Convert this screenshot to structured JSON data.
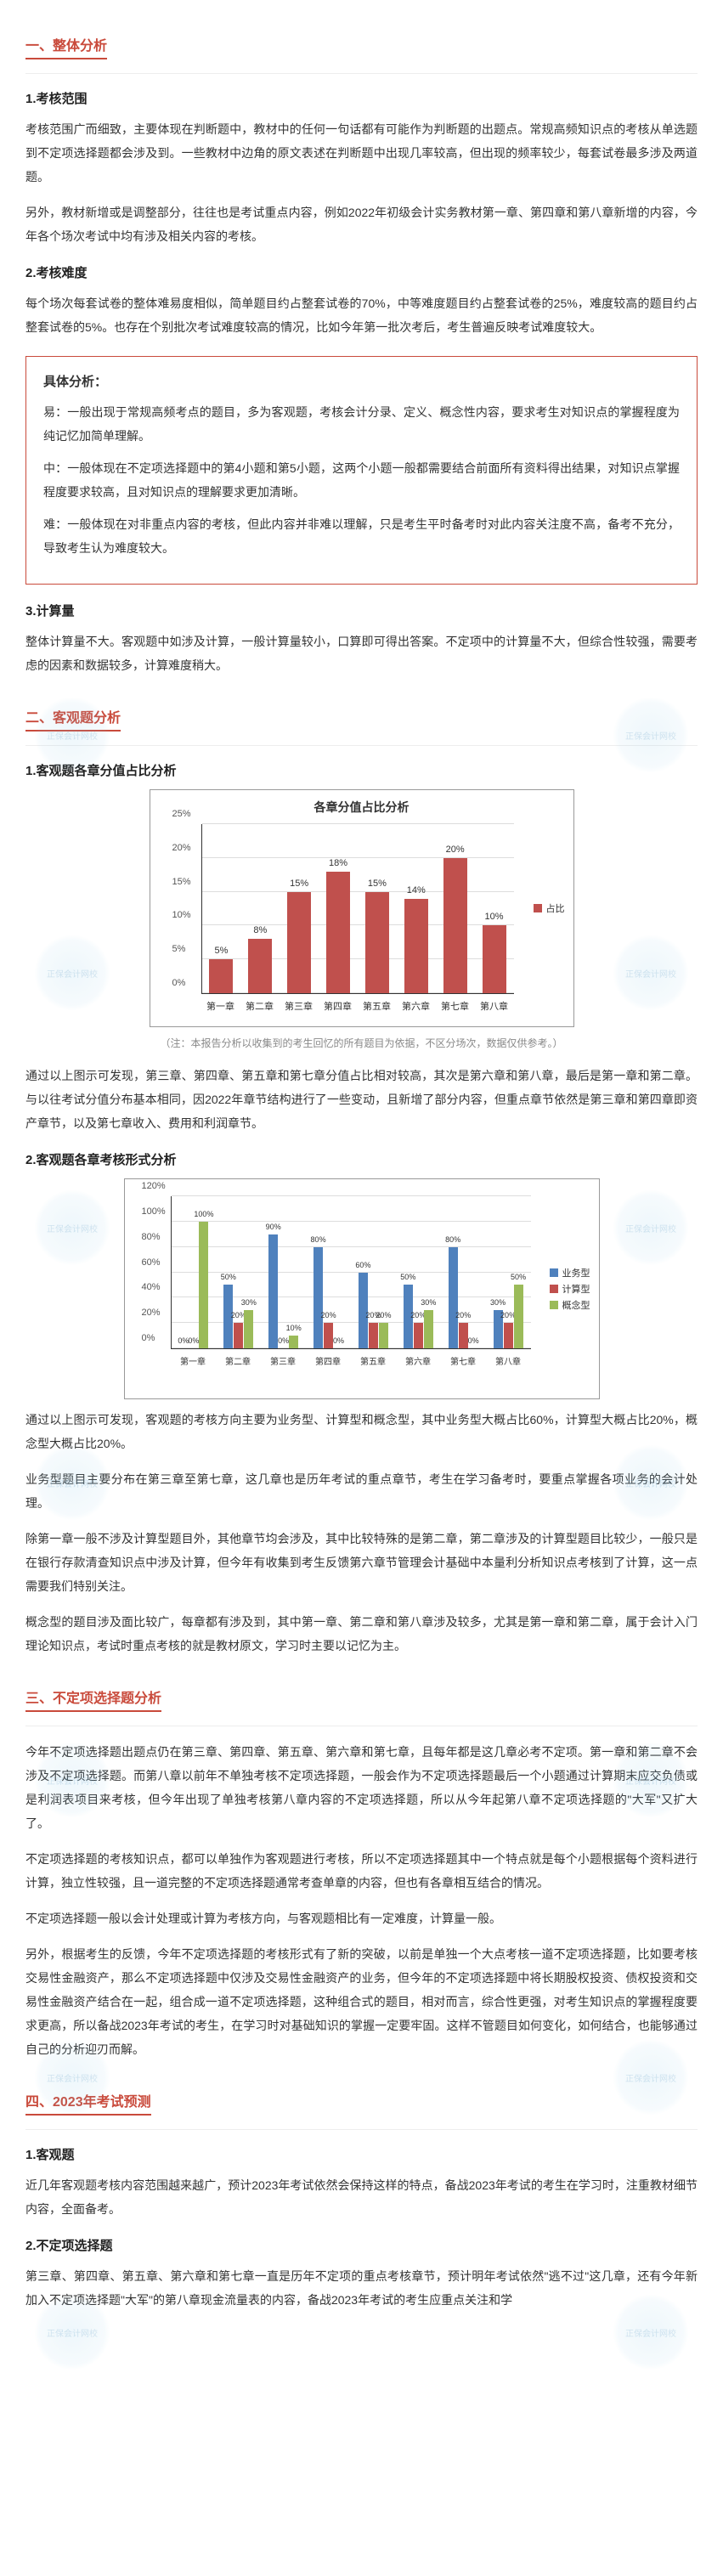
{
  "sections": {
    "s1": {
      "title": "一、整体分析"
    },
    "s2": {
      "title": "二、客观题分析"
    },
    "s3": {
      "title": "三、不定项选择题分析"
    },
    "s4": {
      "title": "四、2023年考试预测"
    }
  },
  "sub": {
    "h1_1": "1.考核范围",
    "h1_2": "2.考核难度",
    "h1_3": "3.计算量",
    "h2_1": "1.客观题各章分值占比分析",
    "h2_2": "2.客观题各章考核形式分析",
    "h4_1": "1.客观题",
    "h4_2": "2.不定项选择题"
  },
  "paras": {
    "p1_1": "考核范围广而细致，主要体现在判断题中，教材中的任何一句话都有可能作为判断题的出题点。常规高频知识点的考核从单选题到不定项选择题都会涉及到。一些教材中边角的原文表述在判断题中出现几率较高，但出现的频率较少，每套试卷最多涉及两道题。",
    "p1_2": "另外，教材新增或是调整部分，往往也是考试重点内容，例如2022年初级会计实务教材第一章、第四章和第八章新增的内容，今年各个场次考试中均有涉及相关内容的考核。",
    "p1_3": "每个场次每套试卷的整体难易度相似，简单题目约占整套试卷的70%，中等难度题目约占整套试卷的25%，难度较高的题目约占整套试卷的5%。也存在个别批次考试难度较高的情况，比如今年第一批次考后，考生普遍反映考试难度较大。",
    "p1_4": "整体计算量不大。客观题中如涉及计算，一般计算量较小，口算即可得出答案。不定项中的计算量不大，但综合性较强，需要考虑的因素和数据较多，计算难度稍大。",
    "p2_1": "通过以上图示可发现，第三章、第四章、第五章和第七章分值占比相对较高，其次是第六章和第八章，最后是第一章和第二章。与以往考试分值分布基本相同，因2022年章节结构进行了一些变动，且新增了部分内容，但重点章节依然是第三章和第四章即资产章节，以及第七章收入、费用和利润章节。",
    "p2_2": "通过以上图示可发现，客观题的考核方向主要为业务型、计算型和概念型，其中业务型大概占比60%，计算型大概占比20%，概念型大概占比20%。",
    "p2_3": "业务型题目主要分布在第三章至第七章，这几章也是历年考试的重点章节，考生在学习备考时，要重点掌握各项业务的会计处理。",
    "p2_4": "除第一章一般不涉及计算型题目外，其他章节均会涉及，其中比较特殊的是第二章，第二章涉及的计算型题目比较少，一般只是在银行存款清查知识点中涉及计算，但今年有收集到考生反馈第六章节管理会计基础中本量利分析知识点考核到了计算，这一点需要我们特别关注。",
    "p2_5": "概念型的题目涉及面比较广，每章都有涉及到，其中第一章、第二章和第八章涉及较多，尤其是第一章和第二章，属于会计入门理论知识点，考试时重点考核的就是教材原文，学习时主要以记忆为主。",
    "p3_1": "今年不定项选择题出题点仍在第三章、第四章、第五章、第六章和第七章，且每年都是这几章必考不定项。第一章和第二章不会涉及不定项选择题。而第八章以前年不单独考核不定项选择题，一般会作为不定项选择题最后一个小题通过计算期末应交负债或是利润表项目来考核，但今年出现了单独考核第八章内容的不定项选择题，所以从今年起第八章不定项选择题的\"大军\"又扩大了。",
    "p3_2": "不定项选择题的考核知识点，都可以单独作为客观题进行考核，所以不定项选择题其中一个特点就是每个小题根据每个资料进行计算，独立性较强，且一道完整的不定项选择题通常考查单章的内容，但也有各章相互结合的情况。",
    "p3_3": "不定项选择题一般以会计处理或计算为考核方向，与客观题相比有一定难度，计算量一般。",
    "p3_4": "另外，根据考生的反馈，今年不定项选择题的考核形式有了新的突破，以前是单独一个大点考核一道不定项选择题，比如要考核交易性金融资产，那么不定项选择题中仅涉及交易性金融资产的业务，但今年的不定项选择题中将长期股权投资、债权投资和交易性金融资产结合在一起，组合成一道不定项选择题，这种组合式的题目，相对而言，综合性更强，对考生知识点的掌握程度要求更高，所以备战2023年考试的考生，在学习时对基础知识的掌握一定要牢固。这样不管题目如何变化，如何结合，也能够通过自己的分析迎刃而解。",
    "p4_1": "近几年客观题考核内容范围越来越广，预计2023年考试依然会保持这样的特点，备战2023年考试的考生在学习时，注重教材细节内容，全面备考。",
    "p4_2": "第三章、第四章、第五章、第六章和第七章一直是历年不定项的重点考核章节，预计明年考试依然\"逃不过\"这几章，还有今年新加入不定项选择题\"大军\"的第八章现金流量表的内容，备战2023年考试的考生应重点关注和学"
  },
  "box": {
    "title": "具体分析：",
    "p1": "易：一般出现于常规高频考点的题目，多为客观题，考核会计分录、定义、概念性内容，要求考生对知识点的掌握程度为纯记忆加简单理解。",
    "p2": "中：一般体现在不定项选择题中的第4小题和第5小题，这两个小题一般都需要结合前面所有资料得出结果，对知识点掌握程度要求较高，且对知识点的理解要求更加清晰。",
    "p3": "难：一般体现在对非重点内容的考核，但此内容并非难以理解，只是考生平时备考时对此内容关注度不高，备考不充分，导致考生认为难度较大。"
  },
  "chart1": {
    "type": "bar",
    "title": "各章分值占比分析",
    "categories": [
      "第一章",
      "第二章",
      "第三章",
      "第四章",
      "第五章",
      "第六章",
      "第七章",
      "第八章"
    ],
    "values": [
      5,
      8,
      15,
      18,
      15,
      14,
      20,
      10
    ],
    "value_labels": [
      "5%",
      "8%",
      "15%",
      "18%",
      "15%",
      "14%",
      "20%",
      "10%"
    ],
    "ymax": 25,
    "ytick_step": 5,
    "bar_color": "#c0504d",
    "legend_label": "占比",
    "grid_color": "#dddddd",
    "note": "（注：本报告分析以收集到的考生回忆的所有题目为依据，不区分场次，数据仅供参考。）"
  },
  "chart2": {
    "type": "grouped-bar",
    "categories": [
      "第一章",
      "第二章",
      "第三章",
      "第四章",
      "第五章",
      "第六章",
      "第七章",
      "第八章"
    ],
    "series": [
      {
        "name": "业务型",
        "color": "#4f81bd",
        "values": [
          0,
          50,
          90,
          80,
          60,
          50,
          80,
          30
        ],
        "labels": [
          "0%",
          "50%",
          "90%",
          "80%",
          "60%",
          "50%",
          "80%",
          "30%"
        ]
      },
      {
        "name": "计算型",
        "color": "#c0504d",
        "values": [
          0,
          20,
          0,
          20,
          20,
          20,
          20,
          20
        ],
        "labels": [
          "0%",
          "20%",
          "0%",
          "20%",
          "20%",
          "20%",
          "20%",
          "20%"
        ]
      },
      {
        "name": "概念型",
        "color": "#9bbb59",
        "values": [
          100,
          30,
          10,
          0,
          20,
          30,
          0,
          50
        ],
        "labels": [
          "100%",
          "30%",
          "10%",
          "0%",
          "20%",
          "30%",
          "0%",
          "50%"
        ]
      }
    ],
    "ymax": 120,
    "ytick_step": 20,
    "grid_color": "#dddddd"
  },
  "watermark_text": "正保会计网校"
}
